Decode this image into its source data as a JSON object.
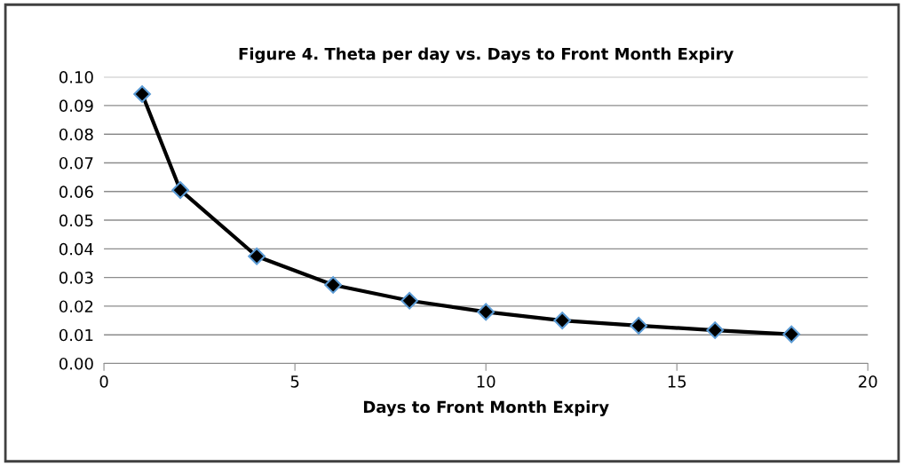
{
  "chart_data": {
    "type": "line",
    "title": "Figure 4. Theta per day vs. Days to Front Month Expiry",
    "xlabel": "Days to Front Month Expiry",
    "x": [
      1,
      2,
      4,
      6,
      8,
      10,
      12,
      14,
      16,
      18
    ],
    "series": [
      {
        "color": "#000000",
        "values": [
          0.094,
          0.0605,
          0.0374,
          0.0274,
          0.0219,
          0.018,
          0.015,
          0.0132,
          0.0116,
          0.0102
        ]
      }
    ],
    "xlim": [
      0,
      20
    ],
    "xticks": [
      0,
      5,
      10,
      15,
      20
    ],
    "ylim": [
      0,
      0.1
    ],
    "yticks": [
      {
        "value": 0,
        "label": "0.00"
      },
      {
        "value": 0.01,
        "label": "0.01"
      },
      {
        "value": 0.02,
        "label": "0.02"
      },
      {
        "value": 0.03,
        "label": "0.03"
      },
      {
        "value": 0.04,
        "label": "0.04"
      },
      {
        "value": 0.05,
        "label": "0.05"
      },
      {
        "value": 0.06,
        "label": "0.06"
      },
      {
        "value": 0.07,
        "label": "0.07"
      },
      {
        "value": 0.08,
        "label": "0.08"
      },
      {
        "value": 0.09,
        "label": "0.09"
      },
      {
        "value": 0.1,
        "label": "0.10"
      }
    ],
    "grid": "y",
    "marker": "diamond",
    "line_style": "solid",
    "legend": false
  }
}
